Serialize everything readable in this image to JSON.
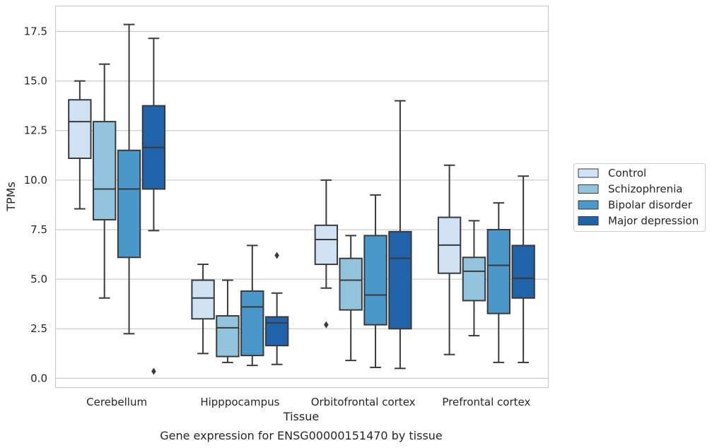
{
  "chart_data": {
    "type": "box",
    "xlabel": "Tissue",
    "ylabel": "TPMs",
    "caption": "Gene expression for ENSG00000151470 by tissue",
    "ylim": [
      -0.45,
      18.8
    ],
    "yticks": [
      "0.0",
      "2.5",
      "5.0",
      "7.5",
      "10.0",
      "12.5",
      "15.0",
      "17.5"
    ],
    "categories": [
      "Cerebellum",
      "Hipppocampus",
      "Orbitofrontal cortex",
      "Prefrontal cortex"
    ],
    "grid": "horizontal",
    "legend_position": "right",
    "series": [
      {
        "name": "Control",
        "color": "#cfe1f2",
        "boxes": [
          {
            "whisker_low": 8.55,
            "q1": 11.1,
            "median": 12.95,
            "q3": 14.05,
            "whisker_high": 15.0,
            "outliers": []
          },
          {
            "whisker_low": 1.25,
            "q1": 3.0,
            "median": 4.05,
            "q3": 4.95,
            "whisker_high": 5.75,
            "outliers": []
          },
          {
            "whisker_low": 4.55,
            "q1": 5.75,
            "median": 7.0,
            "q3": 7.72,
            "whisker_high": 10.0,
            "outliers": [
              2.7
            ]
          },
          {
            "whisker_low": 1.2,
            "q1": 5.3,
            "median": 6.72,
            "q3": 8.12,
            "whisker_high": 10.75,
            "outliers": []
          }
        ]
      },
      {
        "name": "Schizophrenia",
        "color": "#93c4de",
        "boxes": [
          {
            "whisker_low": 4.05,
            "q1": 8.0,
            "median": 9.55,
            "q3": 12.95,
            "whisker_high": 15.85,
            "outliers": []
          },
          {
            "whisker_low": 0.8,
            "q1": 1.1,
            "median": 2.55,
            "q3": 3.15,
            "whisker_high": 4.95,
            "outliers": []
          },
          {
            "whisker_low": 0.9,
            "q1": 3.45,
            "median": 4.95,
            "q3": 6.05,
            "whisker_high": 7.2,
            "outliers": []
          },
          {
            "whisker_low": 2.15,
            "q1": 3.92,
            "median": 5.4,
            "q3": 6.1,
            "whisker_high": 7.95,
            "outliers": []
          }
        ]
      },
      {
        "name": "Bipolar disorder",
        "color": "#4a98c9",
        "boxes": [
          {
            "whisker_low": 2.25,
            "q1": 6.1,
            "median": 9.55,
            "q3": 11.5,
            "whisker_high": 17.85,
            "outliers": []
          },
          {
            "whisker_low": 0.65,
            "q1": 1.15,
            "median": 3.6,
            "q3": 4.4,
            "whisker_high": 6.7,
            "outliers": []
          },
          {
            "whisker_low": 0.55,
            "q1": 2.7,
            "median": 4.2,
            "q3": 7.2,
            "whisker_high": 9.25,
            "outliers": []
          },
          {
            "whisker_low": 0.8,
            "q1": 3.27,
            "median": 5.7,
            "q3": 7.5,
            "whisker_high": 8.85,
            "outliers": []
          }
        ]
      },
      {
        "name": "Major depression",
        "color": "#2163aa",
        "boxes": [
          {
            "whisker_low": 7.45,
            "q1": 9.55,
            "median": 11.65,
            "q3": 13.75,
            "whisker_high": 17.15,
            "outliers": [
              0.35
            ]
          },
          {
            "whisker_low": 0.7,
            "q1": 1.65,
            "median": 2.8,
            "q3": 3.1,
            "whisker_high": 4.3,
            "outliers": [
              6.2
            ]
          },
          {
            "whisker_low": 0.5,
            "q1": 2.5,
            "median": 6.05,
            "q3": 7.4,
            "whisker_high": 14.0,
            "outliers": []
          },
          {
            "whisker_low": 0.8,
            "q1": 4.05,
            "median": 5.05,
            "q3": 6.7,
            "whisker_high": 10.2,
            "outliers": []
          }
        ]
      }
    ]
  }
}
